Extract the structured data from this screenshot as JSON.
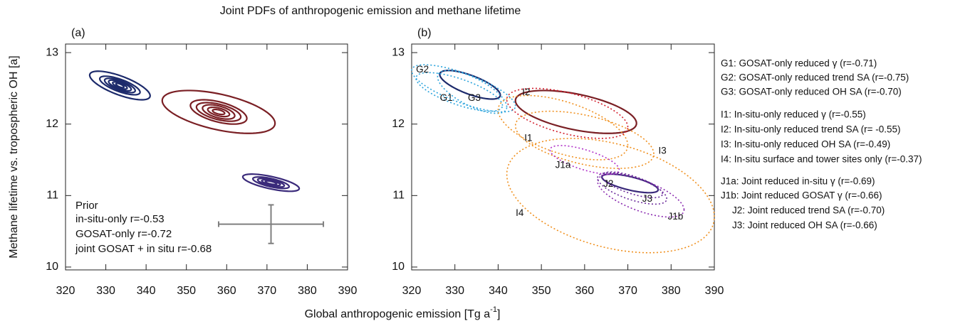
{
  "figure": {
    "title": "Joint PDFs of anthropogenic emission and methane lifetime",
    "ylabel": "Methane lifetime vs. tropospheric OH [a]",
    "xlabel": {
      "text": "Global anthropogenic emission [Tg a",
      "sup": "-1",
      "close": "]"
    }
  },
  "chart_data": [
    {
      "type": "contour-ellipse",
      "panel": "(a)",
      "xlim": [
        320,
        390
      ],
      "ylim": [
        9.96,
        13.12
      ],
      "xticks": [
        320,
        330,
        340,
        350,
        360,
        370,
        380,
        390
      ],
      "yticks": [
        10,
        11,
        12,
        13
      ],
      "prior": {
        "name": "Prior",
        "color": "#7f7f7f",
        "x": 371,
        "y": 10.6,
        "xerr": 13,
        "yerr": 0.27
      },
      "series": [
        {
          "name": "in-situ-only r=-0.53",
          "color": "#7a1f24",
          "text_color": "#d3202f",
          "r": -0.53,
          "cx": 358,
          "cy": 12.17,
          "hx": [
            14,
            7,
            5.5,
            4,
            2.7,
            1.5
          ],
          "hy": [
            0.3,
            0.17,
            0.13,
            0.1,
            0.065,
            0.035
          ]
        },
        {
          "name": "GOSAT-only r=-0.72",
          "color": "#1c2a6b",
          "text_color": "#1f3a8a",
          "r": -0.72,
          "cx": 333.5,
          "cy": 12.54,
          "hx": [
            7.5,
            5,
            3.8,
            2.8,
            1.8,
            1
          ],
          "hy": [
            0.2,
            0.13,
            0.1,
            0.075,
            0.05,
            0.03
          ]
        },
        {
          "name": "joint GOSAT + in situ r=-0.68",
          "color": "#3a2a7a",
          "text_color": "#6a2a9a",
          "r": -0.68,
          "cx": 371,
          "cy": 11.18,
          "hx": [
            7,
            4.5,
            3.3,
            2.3,
            1.4
          ],
          "hy": [
            0.12,
            0.08,
            0.06,
            0.04,
            0.025
          ]
        }
      ]
    },
    {
      "type": "ellipse",
      "panel": "(b)",
      "xlim": [
        320,
        390
      ],
      "ylim": [
        9.96,
        13.12
      ],
      "xticks": [
        320,
        330,
        340,
        350,
        360,
        370,
        380,
        390
      ],
      "yticks": [
        10,
        11,
        12,
        13
      ],
      "base": [
        {
          "color": "#1c2a6b",
          "cx": 333.5,
          "cy": 12.55,
          "hx": 7,
          "hy": 0.2,
          "r": -0.72
        },
        {
          "color": "#7a1f24",
          "cx": 358,
          "cy": 12.17,
          "hx": 14,
          "hy": 0.3,
          "r": -0.53
        },
        {
          "color": "#3a2a7a",
          "cx": 370.5,
          "cy": 11.17,
          "hx": 6.5,
          "hy": 0.13,
          "r": -0.68
        }
      ],
      "series": [
        {
          "label": "G1",
          "name": "G1: GOSAT-only reduced γ (r=-0.71)",
          "color": "#2aa3dc",
          "text_color": "#2aa3dc",
          "cx": 331,
          "cy": 12.45,
          "hx": 10,
          "hy": 0.27,
          "r": -0.71
        },
        {
          "label": "G2",
          "name": "G2: GOSAT-only reduced trend SA (r=-0.75)",
          "color": "#2aa3dc",
          "text_color": "#2aa3dc",
          "cx": 332,
          "cy": 12.5,
          "hx": 12,
          "hy": 0.33,
          "r": -0.75
        },
        {
          "label": "G3",
          "name": "G3: GOSAT-only reduced OH SA (r=-0.70)",
          "color": "#2aa3dc",
          "text_color": "#2aa3dc",
          "cx": 334,
          "cy": 12.45,
          "hx": 8,
          "hy": 0.3,
          "r": -0.7
        },
        {
          "label": "I1",
          "name": "I1: In-situ-only reduced γ (r=-0.55)",
          "color": "#f0901e",
          "text_color": "#d3202f",
          "cx": 355,
          "cy": 11.95,
          "hx": 15,
          "hy": 0.45,
          "r": -0.55
        },
        {
          "label": "I2",
          "name": "I2: In-situ-only reduced trend SA (r= -0.55)",
          "color": "#d3202f",
          "text_color": "#d3202f",
          "cx": 356,
          "cy": 12.15,
          "hx": 14,
          "hy": 0.35,
          "r": -0.55
        },
        {
          "label": "I3",
          "name": "I3: In-situ-only reduced OH SA (r=-0.49)",
          "color": "#f0901e",
          "text_color": "#d3202f",
          "cx": 360,
          "cy": 11.78,
          "hx": 16,
          "hy": 0.4,
          "r": -0.49
        },
        {
          "label": "I4",
          "name": "I4: In-situ surface and tower sites only (r=-0.37)",
          "color": "#f0901e",
          "text_color": "#d3202f",
          "cx": 366,
          "cy": 11.0,
          "hx": 24,
          "hy": 0.8,
          "r": -0.37
        },
        {
          "label": "J1a",
          "name": "J1a: Joint reduced in-situ γ (r=-0.69)",
          "color": "#b030c8",
          "text_color": "#6a2a9a",
          "cx": 360,
          "cy": 11.5,
          "hx": 8,
          "hy": 0.2,
          "r": -0.69
        },
        {
          "label": "J1b",
          "name": "J1b: Joint reduced GOSAT γ (r=-0.66)",
          "color": "#8a2ab0",
          "text_color": "#6a2a9a",
          "cx": 373,
          "cy": 11.0,
          "hx": 10,
          "hy": 0.3,
          "r": -0.66
        },
        {
          "label": "J2",
          "name": "J2: Joint reduced trend SA (r=-0.70)",
          "color": "#6a2a9a",
          "text_color": "#6a2a9a",
          "cx": 371,
          "cy": 11.15,
          "hx": 7,
          "hy": 0.18,
          "r": -0.7
        },
        {
          "label": "J3",
          "name": "J3: Joint reduced OH SA (r=-0.66)",
          "color": "#6a2a9a",
          "text_color": "#6a2a9a",
          "cx": 371,
          "cy": 11.1,
          "hx": 8,
          "hy": 0.22,
          "r": -0.66
        }
      ]
    }
  ]
}
